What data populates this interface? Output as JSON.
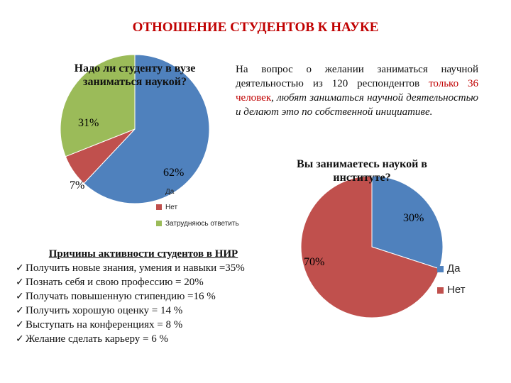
{
  "title": "ОТНОШЕНИЕ СТУДЕНТОВ К НАУКЕ",
  "survey_note": {
    "part1": "На вопрос о желании заниматься научной деятельностью из 120 респондентов ",
    "highlight": "только 36 человек",
    "part2": ", ",
    "italic": "любят заниматься научной деятельностью и делают это по собственной инициативе."
  },
  "reasons": {
    "heading": "Причины активности студентов в НИР",
    "items": [
      "Получить новые знания, умения и навыки =35%",
      "Познать себя и свою профессию = 20%",
      "Получать повышенную стипендию =16 %",
      "Получить хорошую оценку = 14 %",
      "Выступать на конференциях = 8 %",
      "Желание сделать карьеру = 6 %"
    ]
  },
  "colors": {
    "blue": "#4f81bd",
    "red": "#c0504d",
    "green": "#9bbb59",
    "title_red": "#c00000"
  },
  "icons": {
    "bullet": "check-icon"
  },
  "chart_data": [
    {
      "type": "pie",
      "title": "Надо ли студенту в вузе заниматься наукой?",
      "categories": [
        "Да",
        "Нет",
        "Затрудняюсь ответить"
      ],
      "values": [
        62,
        7,
        31
      ],
      "data_labels": [
        "62%",
        "7%",
        "31%"
      ],
      "legend": "right-bottom"
    },
    {
      "type": "pie",
      "title": "Вы занимаетесь наукой в институте?",
      "categories": [
        "Да",
        "Нет"
      ],
      "values": [
        30,
        70
      ],
      "data_labels": [
        "30%",
        "70%"
      ],
      "legend": "right"
    }
  ]
}
